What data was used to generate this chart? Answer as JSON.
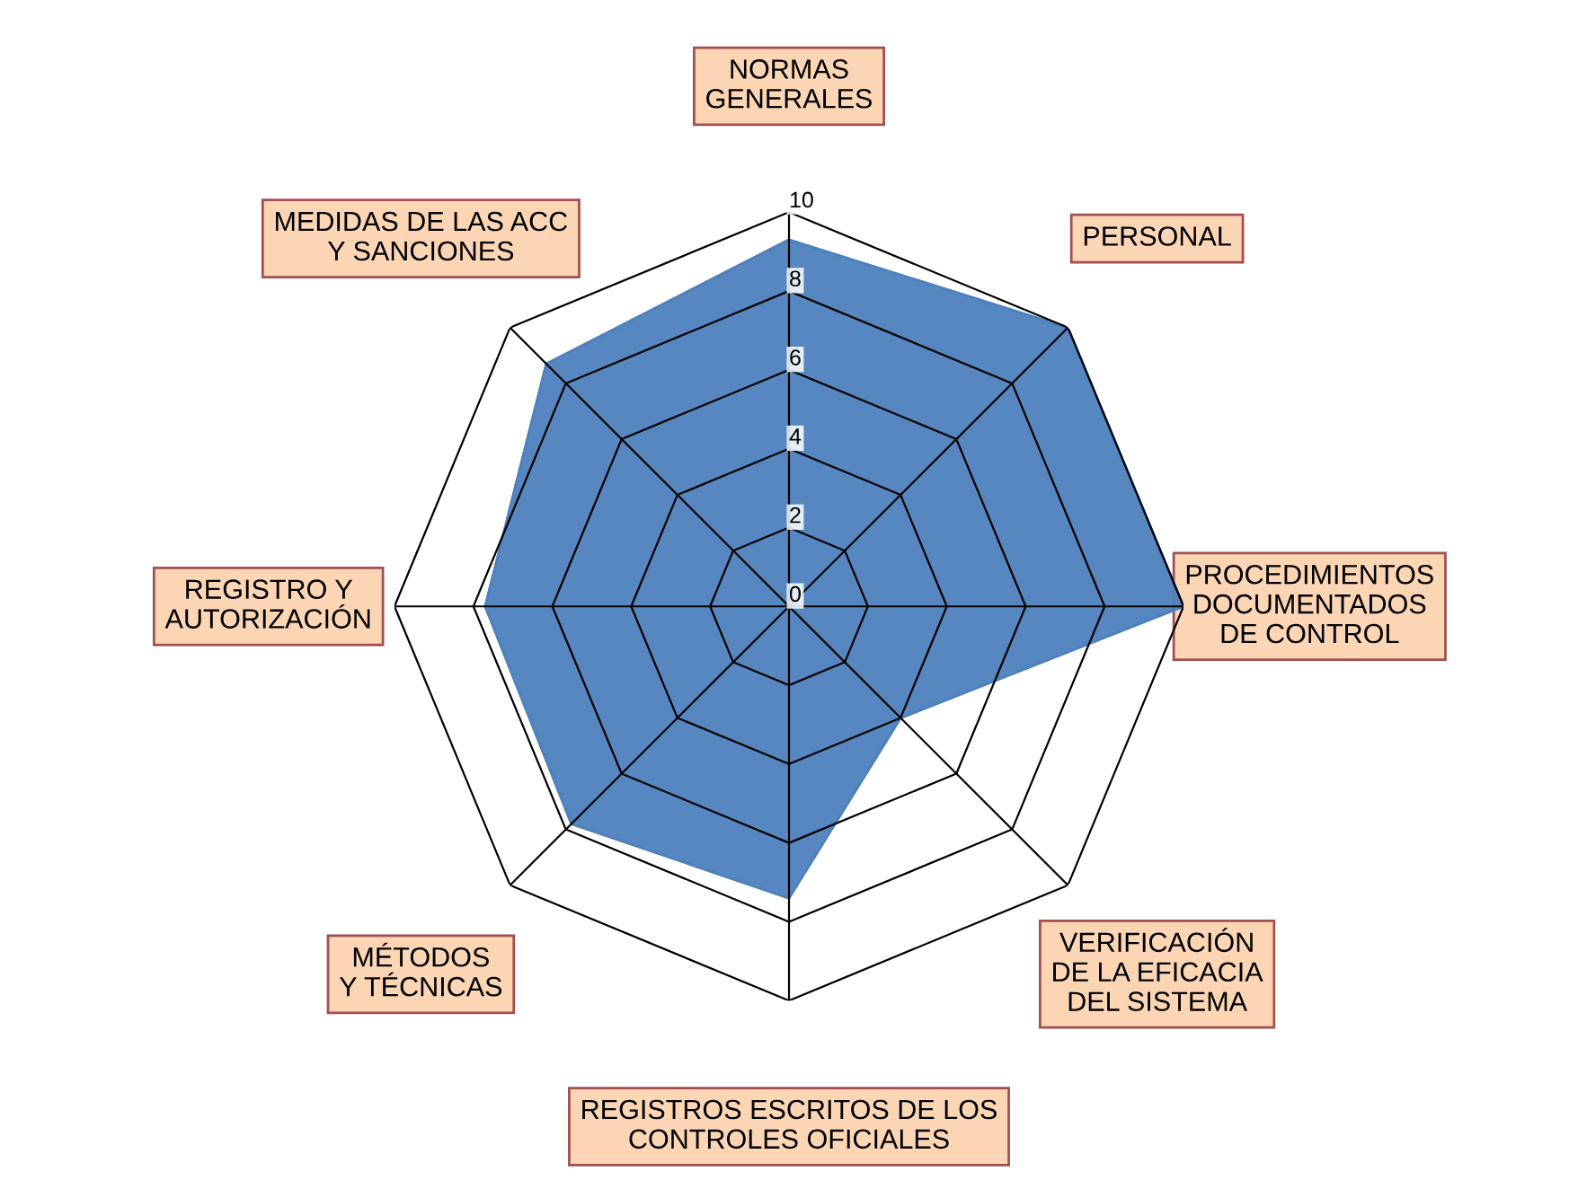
{
  "chart_data": {
    "type": "radar",
    "categories": [
      "NORMAS\nGENERALES",
      "PERSONAL",
      "PROCEDIMIENTOS\nDOCUMENTADOS\nDE CONTROL",
      "VERIFICACIÓN\nDE LA EFICACIA\nDEL SISTEMA",
      "REGISTROS ESCRITOS DE LOS\nCONTROLES OFICIALES",
      "MÉTODOS\nY TÉCNICAS",
      "REGISTRO Y\nAUTORIZACIÓN",
      "MEDIDAS DE LAS ACC\nY SANCIONES"
    ],
    "series": [
      {
        "color": "#4f81bd",
        "values": [
          9.3,
          10,
          10,
          4,
          7.4,
          7.8,
          7.7,
          8.7
        ]
      }
    ],
    "ylim": [
      0,
      10
    ],
    "yticks": [
      0,
      2,
      4,
      6,
      8,
      10
    ],
    "grid": true,
    "legend": false
  }
}
